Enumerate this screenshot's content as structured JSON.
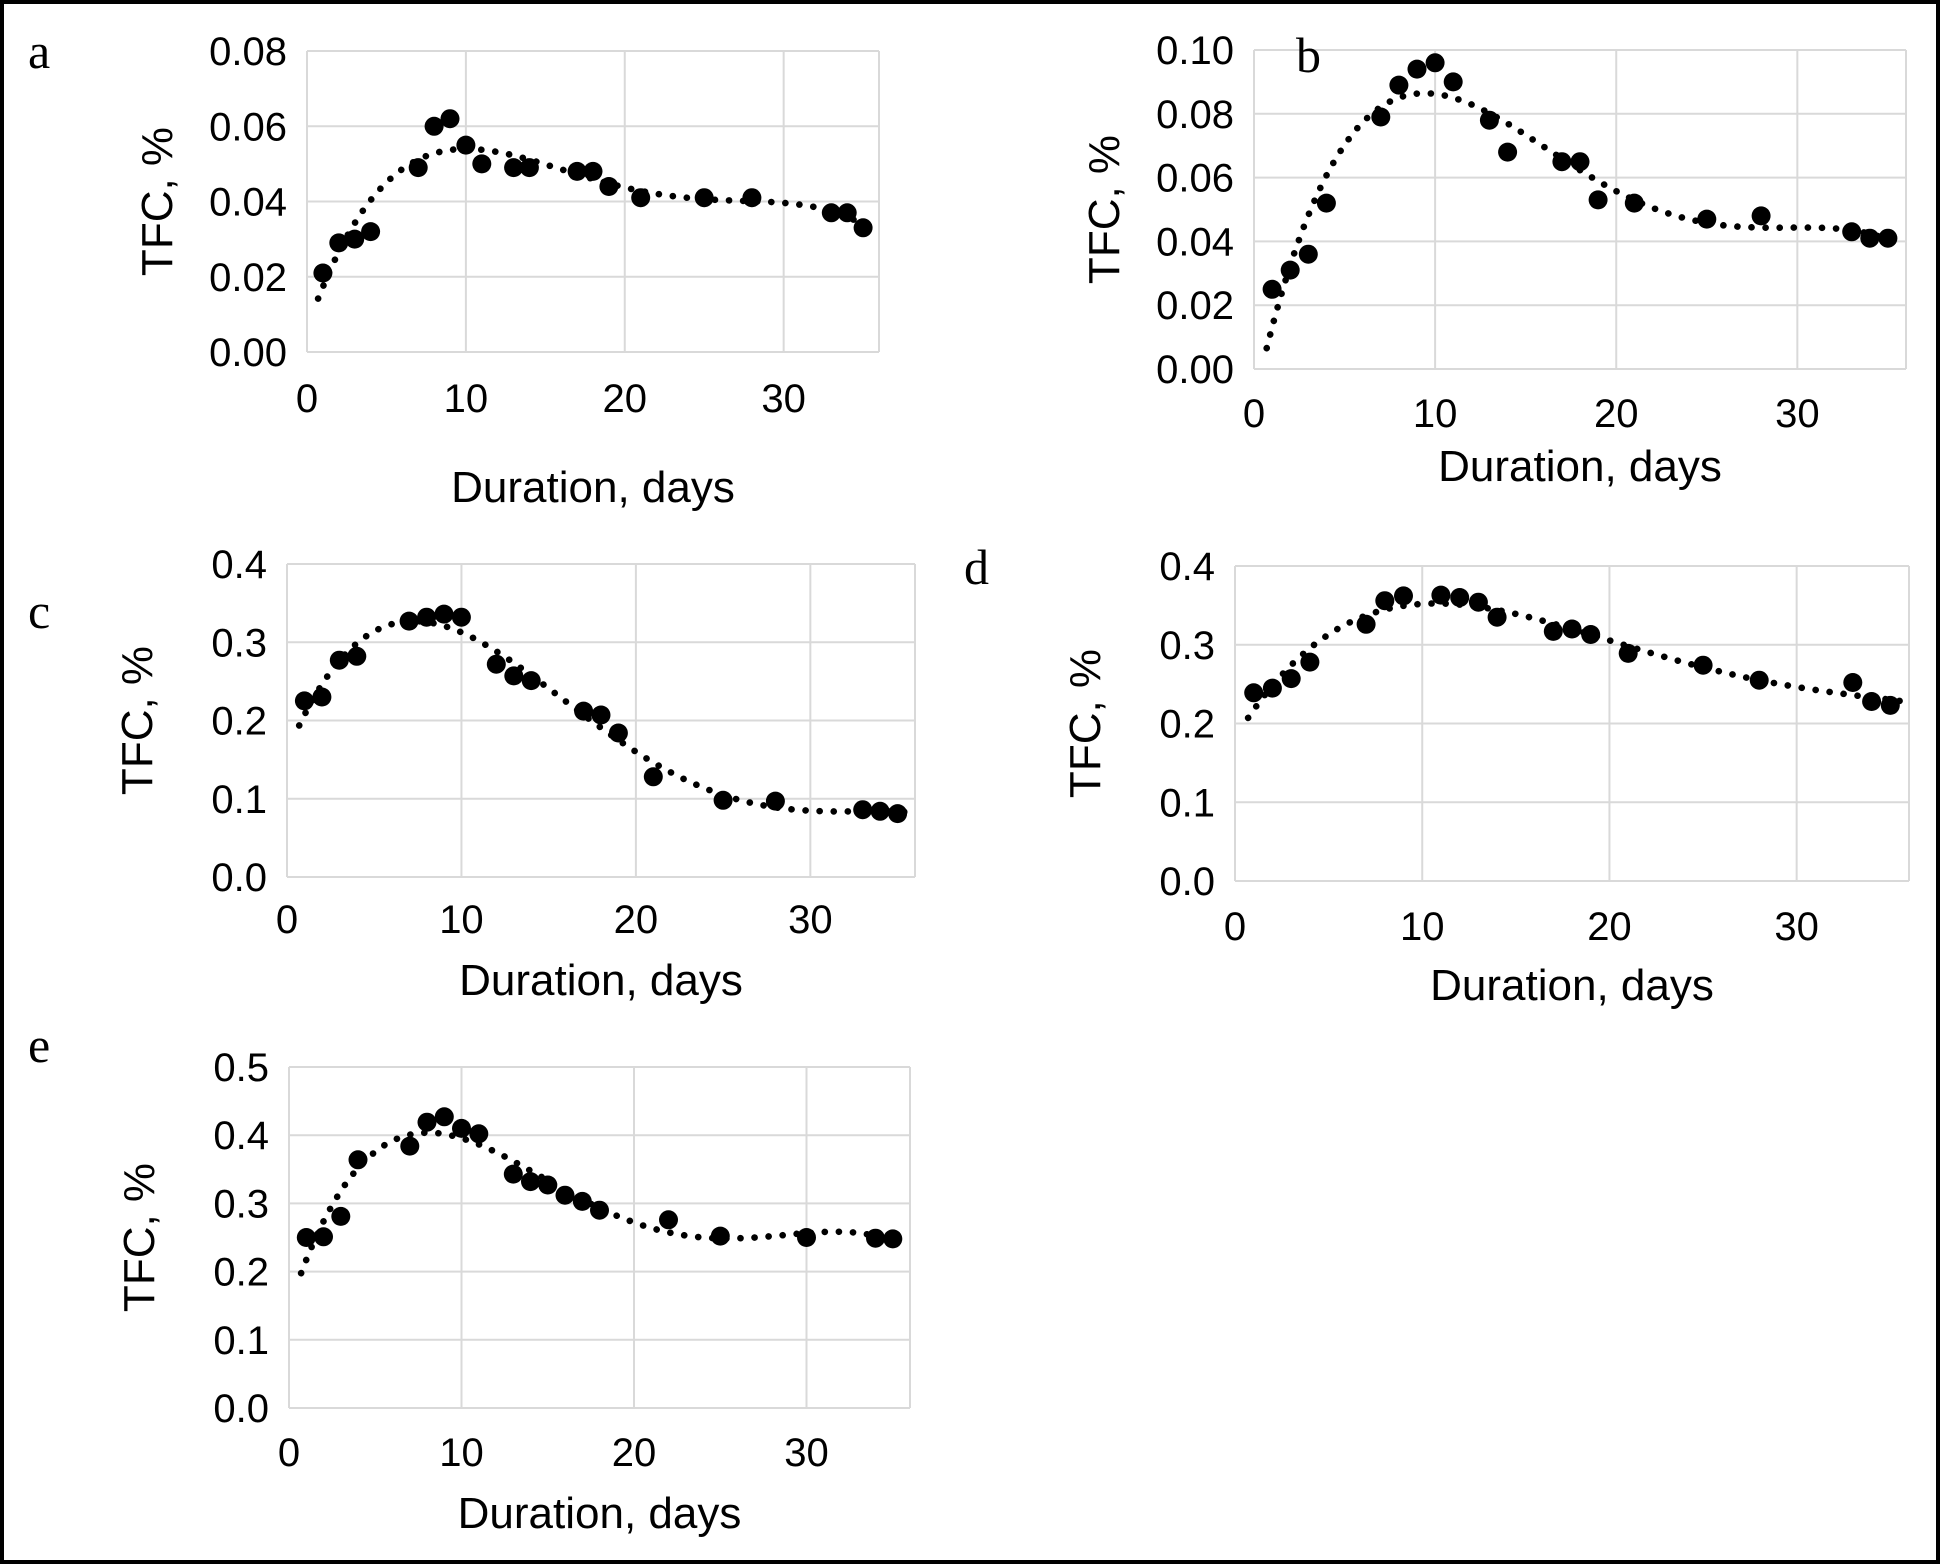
{
  "figure": {
    "description": "Five scatter panels of total flavonoid content (TFC, %) versus fermentation duration in days, each with a dotted polynomial trendline",
    "panel_count": 5,
    "background_color": "#ffffff",
    "border_color": "#000000",
    "gridline_color": "#d9d9d9",
    "marker_color": "#000000",
    "trendline_color": "#000000",
    "text_color": "#000000"
  },
  "chart_data": [
    {
      "type": "scatter",
      "panel_label": "a",
      "xlabel": "Duration, days",
      "ylabel": "TFC, %",
      "xlim": [
        0,
        36
      ],
      "ylim": [
        0,
        0.08
      ],
      "x_ticks": [
        0,
        10,
        20,
        30
      ],
      "x_tick_labels": [
        "0",
        "10",
        "20",
        "30"
      ],
      "y_ticks": [
        0,
        0.02,
        0.04,
        0.06,
        0.08
      ],
      "y_tick_labels": [
        "0.00",
        "0.02",
        "0.04",
        "0.06",
        "0.08"
      ],
      "grid": true,
      "legend": "none",
      "trendline": "dotted polynomial",
      "x": [
        1,
        2,
        3,
        4,
        7,
        8,
        9,
        10,
        11,
        13,
        14,
        17,
        18,
        19,
        21,
        25,
        28,
        33,
        34,
        35
      ],
      "y": [
        0.021,
        0.029,
        0.03,
        0.032,
        0.049,
        0.06,
        0.062,
        0.055,
        0.05,
        0.049,
        0.049,
        0.048,
        0.048,
        0.044,
        0.041,
        0.041,
        0.041,
        0.037,
        0.037,
        0.033
      ]
    },
    {
      "type": "scatter",
      "panel_label": "b",
      "xlabel": "Duration, days",
      "ylabel": "TFC, %",
      "xlim": [
        0,
        36
      ],
      "ylim": [
        0,
        0.1
      ],
      "x_ticks": [
        0,
        10,
        20,
        30
      ],
      "x_tick_labels": [
        "0",
        "10",
        "20",
        "30"
      ],
      "y_ticks": [
        0,
        0.02,
        0.04,
        0.06,
        0.08,
        0.1
      ],
      "y_tick_labels": [
        "0.00",
        "0.02",
        "0.04",
        "0.06",
        "0.08",
        "0.10"
      ],
      "grid": true,
      "legend": "none",
      "trendline": "dotted polynomial",
      "x": [
        1,
        2,
        3,
        4,
        7,
        8,
        9,
        10,
        11,
        13,
        14,
        17,
        18,
        19,
        21,
        25,
        28,
        33,
        34,
        35
      ],
      "y": [
        0.025,
        0.031,
        0.036,
        0.052,
        0.079,
        0.089,
        0.094,
        0.096,
        0.09,
        0.078,
        0.068,
        0.065,
        0.065,
        0.053,
        0.052,
        0.047,
        0.048,
        0.043,
        0.041,
        0.041
      ]
    },
    {
      "type": "scatter",
      "panel_label": "c",
      "xlabel": "Duration, days",
      "ylabel": "TFC, %",
      "xlim": [
        0,
        36
      ],
      "ylim": [
        0,
        0.4
      ],
      "x_ticks": [
        0,
        10,
        20,
        30
      ],
      "x_tick_labels": [
        "0",
        "10",
        "20",
        "30"
      ],
      "y_ticks": [
        0,
        0.1,
        0.2,
        0.3,
        0.4
      ],
      "y_tick_labels": [
        "0.0",
        "0.1",
        "0.2",
        "0.3",
        "0.4"
      ],
      "grid": true,
      "legend": "none",
      "trendline": "dotted polynomial",
      "x": [
        1,
        2,
        3,
        4,
        7,
        8,
        9,
        10,
        12,
        13,
        14,
        17,
        18,
        19,
        21,
        25,
        28,
        33,
        34,
        35
      ],
      "y": [
        0.225,
        0.23,
        0.277,
        0.282,
        0.327,
        0.332,
        0.336,
        0.332,
        0.272,
        0.257,
        0.251,
        0.212,
        0.207,
        0.184,
        0.128,
        0.098,
        0.097,
        0.086,
        0.084,
        0.081
      ]
    },
    {
      "type": "scatter",
      "panel_label": "d",
      "xlabel": "Duration, days",
      "ylabel": "TFC, %",
      "xlim": [
        0,
        36
      ],
      "ylim": [
        0,
        0.4
      ],
      "x_ticks": [
        0,
        10,
        20,
        30
      ],
      "x_tick_labels": [
        "0",
        "10",
        "20",
        "30"
      ],
      "y_ticks": [
        0,
        0.1,
        0.2,
        0.3,
        0.4
      ],
      "y_tick_labels": [
        "0.0",
        "0.1",
        "0.2",
        "0.3",
        "0.4"
      ],
      "grid": true,
      "legend": "none",
      "trendline": "dotted polynomial",
      "x": [
        1,
        2,
        3,
        4,
        7,
        8,
        9,
        11,
        12,
        13,
        14,
        17,
        18,
        19,
        21,
        25,
        28,
        33,
        34,
        35
      ],
      "y": [
        0.239,
        0.245,
        0.257,
        0.278,
        0.326,
        0.356,
        0.362,
        0.363,
        0.36,
        0.354,
        0.335,
        0.317,
        0.32,
        0.313,
        0.289,
        0.274,
        0.255,
        0.252,
        0.228,
        0.223
      ]
    },
    {
      "type": "scatter",
      "panel_label": "e",
      "xlabel": "Duration, days",
      "ylabel": "TFC, %",
      "xlim": [
        0,
        36
      ],
      "ylim": [
        0,
        0.5
      ],
      "x_ticks": [
        0,
        10,
        20,
        30
      ],
      "x_tick_labels": [
        "0",
        "10",
        "20",
        "30"
      ],
      "y_ticks": [
        0,
        0.1,
        0.2,
        0.3,
        0.4,
        0.5
      ],
      "y_tick_labels": [
        "0.0",
        "0.1",
        "0.2",
        "0.3",
        "0.4",
        "0.5"
      ],
      "grid": true,
      "legend": "none",
      "trendline": "dotted polynomial",
      "x": [
        1,
        2,
        3,
        4,
        7,
        8,
        9,
        10,
        11,
        13,
        14,
        15,
        16,
        17,
        18,
        22,
        25,
        30,
        34,
        35
      ],
      "y": [
        0.25,
        0.251,
        0.281,
        0.364,
        0.384,
        0.419,
        0.427,
        0.41,
        0.402,
        0.343,
        0.332,
        0.327,
        0.312,
        0.303,
        0.29,
        0.276,
        0.252,
        0.25,
        0.249,
        0.248
      ]
    }
  ]
}
